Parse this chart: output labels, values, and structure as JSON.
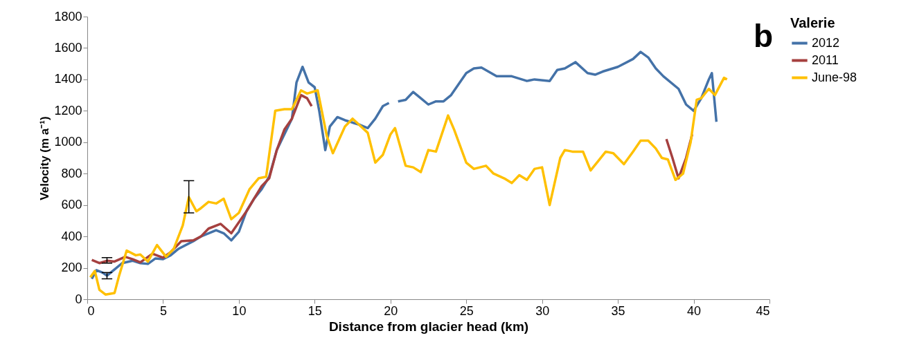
{
  "chart_data": {
    "type": "line",
    "xlabel": "Distance from glacier head (km)",
    "ylabel": "Velocity (m a⁻¹)",
    "legend_title": "Valerie",
    "legend": "right",
    "grid": false,
    "marker": "none",
    "line_style": "solid",
    "xlim": [
      0,
      45
    ],
    "xticks": [
      0,
      5,
      10,
      15,
      20,
      25,
      30,
      35,
      40,
      45
    ],
    "ylim": [
      0,
      1800
    ],
    "yticks": [
      0,
      200,
      400,
      600,
      800,
      1000,
      1200,
      1400,
      1600,
      1800
    ],
    "annotations": [
      "b"
    ],
    "series": [
      {
        "name": "2012",
        "color": "#4472a8",
        "x": [
          0.3,
          0.6,
          1.0,
          1.3,
          1.8,
          2.3,
          3,
          3.5,
          4,
          4.5,
          5,
          5.5,
          6,
          7,
          7.5,
          8.5,
          9,
          9.5,
          10,
          10.5,
          11,
          11.5,
          12,
          12.5,
          13,
          13.5,
          13.8,
          14.2,
          14.6,
          15,
          15.3,
          15.7,
          16,
          16.5,
          17,
          18,
          18.5,
          19,
          19.5,
          19.9,
          20.3,
          20.5,
          21,
          21.5,
          22,
          22.5,
          23,
          23.5,
          24,
          25,
          25.5,
          26,
          27,
          28,
          29,
          29.5,
          30.5,
          31,
          31.5,
          32.2,
          33,
          33.5,
          34,
          35,
          36,
          36.5,
          37,
          37.5,
          38,
          39,
          39.5,
          40,
          40.5,
          41,
          41.2,
          41.5
        ],
        "values": [
          130,
          185,
          170,
          150,
          190,
          230,
          245,
          230,
          225,
          260,
          255,
          280,
          320,
          370,
          400,
          440,
          420,
          375,
          430,
          560,
          640,
          700,
          780,
          950,
          1050,
          1150,
          1380,
          1480,
          1380,
          1350,
          1200,
          950,
          1100,
          1160,
          1140,
          1110,
          1090,
          1150,
          1230,
          1250,
          null,
          1260,
          1270,
          1320,
          1280,
          1240,
          1260,
          1260,
          1300,
          1440,
          1470,
          1475,
          1420,
          1420,
          1390,
          1400,
          1390,
          1460,
          1470,
          1510,
          1440,
          1430,
          1450,
          1480,
          1530,
          1575,
          1540,
          1470,
          1420,
          1340,
          1240,
          1200,
          1280,
          1400,
          1440,
          1130
        ],
        "errors": [
          null,
          null,
          null,
          20,
          null,
          null,
          null,
          null,
          null,
          null,
          null,
          null,
          null,
          null,
          null,
          null,
          null,
          null,
          null,
          null,
          null,
          null,
          null,
          null,
          null,
          null,
          null,
          null,
          null,
          null,
          null,
          null,
          null,
          null,
          null,
          null,
          null,
          null,
          null,
          null,
          null,
          null,
          null,
          null,
          null,
          null,
          null,
          null,
          null,
          null,
          null,
          null,
          null,
          null,
          null,
          null,
          null,
          null,
          null,
          null,
          null,
          null,
          null,
          null,
          null,
          null,
          null,
          null,
          null,
          null,
          null,
          null,
          null,
          null,
          null,
          null
        ]
      },
      {
        "name": "2011",
        "color": "#a5403f",
        "x": [
          0.3,
          0.8,
          1.3,
          1.8,
          2.5,
          3,
          3.5,
          4.3,
          5,
          5.5,
          6.2,
          7,
          7.5,
          8,
          8.8,
          9.5,
          10.5,
          11.5,
          12,
          12.5,
          13,
          13.5,
          14.1,
          14.5,
          14.8,
          26,
          38.2,
          38.6,
          39,
          39.5,
          39.9
        ],
        "values": [
          250,
          230,
          245,
          240,
          270,
          255,
          235,
          290,
          265,
          300,
          370,
          375,
          400,
          450,
          480,
          420,
          560,
          720,
          770,
          950,
          1080,
          1150,
          1300,
          1280,
          1230,
          null,
          1020,
          900,
          770,
          900,
          1050
        ],
        "errors": [
          null,
          null,
          [
            230,
            265
          ],
          null,
          null,
          null,
          null,
          null,
          null,
          null,
          null,
          null,
          null,
          null,
          null,
          null,
          null,
          null,
          null,
          null,
          null,
          null,
          null,
          null,
          null,
          null,
          null,
          null,
          null,
          null,
          null
        ]
      },
      {
        "name": "June-98",
        "color": "#ffc000",
        "x": [
          0.2,
          0.5,
          0.8,
          1.2,
          1.8,
          2.1,
          2.6,
          3.2,
          3.5,
          4,
          4.6,
          5.2,
          5.7,
          6.3,
          6.7,
          7.2,
          7.5,
          8,
          8.5,
          9,
          9.5,
          10,
          10.7,
          11.3,
          11.8,
          12.4,
          13,
          13.5,
          14.1,
          14.5,
          15.2,
          15.8,
          16.2,
          17,
          17.5,
          18.5,
          19,
          19.5,
          20,
          20.3,
          21,
          21.5,
          22,
          22.5,
          23,
          23.8,
          24.2,
          25,
          25.5,
          26.3,
          26.8,
          27.5,
          28,
          28.5,
          29,
          29.5,
          30,
          30.5,
          31.2,
          31.5,
          32,
          32.7,
          33.2,
          33.7,
          34.2,
          34.7,
          35.4,
          36,
          36.5,
          37,
          37.5,
          37.9,
          38.3,
          38.8,
          39.3,
          39.8,
          40.2,
          40.5,
          41,
          41.4,
          42,
          42.2
        ],
        "values": [
          140,
          180,
          60,
          30,
          40,
          150,
          310,
          280,
          285,
          240,
          345,
          270,
          320,
          470,
          650,
          560,
          580,
          620,
          610,
          640,
          510,
          550,
          700,
          770,
          780,
          1200,
          1210,
          1210,
          1330,
          1310,
          1330,
          1040,
          930,
          1100,
          1150,
          1060,
          870,
          920,
          1050,
          1090,
          850,
          840,
          810,
          950,
          940,
          1170,
          1080,
          870,
          830,
          850,
          800,
          770,
          740,
          790,
          760,
          830,
          840,
          600,
          900,
          950,
          940,
          940,
          820,
          880,
          940,
          930,
          860,
          940,
          1010,
          1010,
          960,
          900,
          890,
          760,
          800,
          1000,
          1270,
          1280,
          1340,
          1300,
          1410,
          1400
        ],
        "errors": [
          null,
          null,
          null,
          null,
          null,
          null,
          null,
          null,
          null,
          null,
          null,
          null,
          null,
          null,
          [
            550,
            755
          ],
          null,
          null,
          null,
          null,
          null,
          null,
          null,
          null,
          null,
          null,
          null,
          null,
          null,
          null,
          null,
          null,
          null,
          null,
          null,
          null,
          null,
          null,
          null,
          null,
          null,
          null,
          null,
          null,
          null,
          null,
          null,
          null,
          null,
          null,
          null,
          null,
          null,
          null,
          null,
          null,
          null,
          null,
          null,
          null,
          null,
          null,
          null,
          null,
          null,
          null,
          null,
          null,
          null,
          null,
          null,
          null,
          null,
          null,
          null,
          null,
          null,
          null,
          null,
          null,
          null,
          null,
          null
        ]
      }
    ]
  }
}
